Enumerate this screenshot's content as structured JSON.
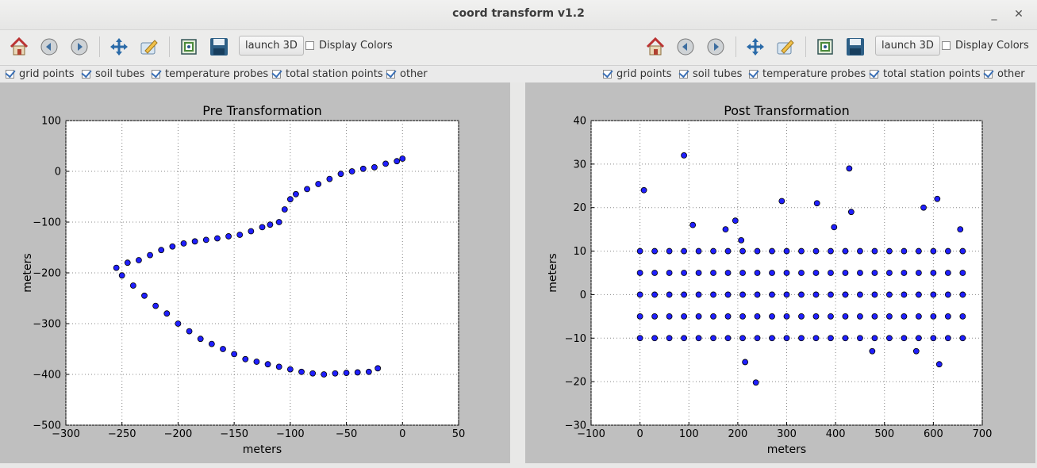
{
  "window": {
    "title": "coord transform v1.2",
    "minimize": "_",
    "close": "✕"
  },
  "toolbar_left": {
    "icons": [
      "home-icon",
      "back-icon",
      "forward-icon",
      "pan-icon",
      "configure-icon",
      "zoom-rect-icon",
      "save-icon"
    ],
    "launch3d": "launch 3D",
    "display_colors": {
      "label": "Display Colors",
      "checked": false
    }
  },
  "toolbar_right": {
    "icons": [
      "home-icon",
      "back-icon",
      "forward-icon",
      "pan-icon",
      "configure-icon",
      "zoom-rect-icon",
      "save-icon"
    ],
    "launch3d": "launch 3D",
    "display_colors": {
      "label": "Display Colors",
      "checked": false
    }
  },
  "filters_left": [
    {
      "label": "grid points",
      "checked": true
    },
    {
      "label": "soil tubes",
      "checked": true
    },
    {
      "label": "temperature probes",
      "checked": true
    },
    {
      "label": "total station points",
      "checked": true
    },
    {
      "label": "other",
      "checked": true
    }
  ],
  "filters_right": [
    {
      "label": "grid points",
      "checked": true
    },
    {
      "label": "soil tubes",
      "checked": true
    },
    {
      "label": "temperature probes",
      "checked": true
    },
    {
      "label": "total station points",
      "checked": true
    },
    {
      "label": "other",
      "checked": true
    }
  ],
  "colors": {
    "marker_fill": "#1f1fff",
    "marker_edge": "#000000",
    "panel_bg": "#bfbfbf",
    "icon_blue": "#2a6aa8"
  },
  "chart_data": [
    {
      "type": "scatter",
      "title": "Pre Transformation",
      "xlabel": "meters",
      "ylabel": "meters",
      "xlim": [
        -300,
        50
      ],
      "ylim": [
        -500,
        100
      ],
      "xticks": [
        "−300",
        "−250",
        "−200",
        "−150",
        "−100",
        "−50",
        "0",
        "50"
      ],
      "yticks": [
        "100",
        "0",
        "−100",
        "−200",
        "−300",
        "−400",
        "−500"
      ],
      "grid": true,
      "series": [
        {
          "x": [
            0,
            -5,
            -15,
            -25,
            -35,
            -45,
            -55,
            -65,
            -75,
            -85,
            -95,
            -100,
            -105,
            -110,
            -118,
            -125,
            -135,
            -145,
            -155,
            -165,
            -175,
            -185,
            -195,
            -205,
            -215,
            -225,
            -235,
            -245,
            -255,
            -250,
            -240,
            -230,
            -220,
            -210,
            -200,
            -190,
            -180,
            -170,
            -160,
            -150,
            -140,
            -130,
            -120,
            -110,
            -100,
            -90,
            -80,
            -70,
            -60,
            -50,
            -40,
            -30,
            -22
          ],
          "y": [
            25,
            20,
            15,
            8,
            5,
            0,
            -5,
            -15,
            -25,
            -35,
            -45,
            -55,
            -75,
            -100,
            -105,
            -110,
            -118,
            -125,
            -128,
            -132,
            -135,
            -138,
            -142,
            -148,
            -155,
            -165,
            -175,
            -180,
            -190,
            -205,
            -225,
            -245,
            -265,
            -280,
            -300,
            -315,
            -330,
            -340,
            -350,
            -360,
            -370,
            -375,
            -380,
            -385,
            -390,
            -395,
            -398,
            -400,
            -398,
            -397,
            -396,
            -395,
            -388
          ]
        }
      ]
    },
    {
      "type": "scatter",
      "title": "Post Transformation",
      "xlabel": "meters",
      "ylabel": "meters",
      "xlim": [
        -100,
        700
      ],
      "ylim": [
        -30,
        40
      ],
      "xticks": [
        "−100",
        "0",
        "100",
        "200",
        "300",
        "400",
        "500",
        "600",
        "700"
      ],
      "yticks": [
        "40",
        "30",
        "20",
        "10",
        "0",
        "−10",
        "−20",
        "−30"
      ],
      "grid": true,
      "series": [
        {
          "x": [
            0,
            30,
            60,
            90,
            120,
            150,
            180,
            210,
            240,
            270,
            300,
            330,
            360,
            390,
            420,
            450,
            480,
            510,
            540,
            570,
            600,
            630,
            660
          ],
          "y": [
            10,
            10,
            10,
            10,
            10,
            10,
            10,
            10,
            10,
            10,
            10,
            10,
            10,
            10,
            10,
            10,
            10,
            10,
            10,
            10,
            10,
            10,
            10
          ]
        },
        {
          "x": [
            0,
            30,
            60,
            90,
            120,
            150,
            180,
            210,
            240,
            270,
            300,
            330,
            360,
            390,
            420,
            450,
            480,
            510,
            540,
            570,
            600,
            630,
            660
          ],
          "y": [
            5,
            5,
            5,
            5,
            5,
            5,
            5,
            5,
            5,
            5,
            5,
            5,
            5,
            5,
            5,
            5,
            5,
            5,
            5,
            5,
            5,
            5,
            5
          ]
        },
        {
          "x": [
            0,
            30,
            60,
            90,
            120,
            150,
            180,
            210,
            240,
            270,
            300,
            330,
            360,
            390,
            420,
            450,
            480,
            510,
            540,
            570,
            600,
            630,
            660
          ],
          "y": [
            0,
            0,
            0,
            0,
            0,
            0,
            0,
            0,
            0,
            0,
            0,
            0,
            0,
            0,
            0,
            0,
            0,
            0,
            0,
            0,
            0,
            0,
            0
          ]
        },
        {
          "x": [
            0,
            30,
            60,
            90,
            120,
            150,
            180,
            210,
            240,
            270,
            300,
            330,
            360,
            390,
            420,
            450,
            480,
            510,
            540,
            570,
            600,
            630,
            660
          ],
          "y": [
            -5,
            -5,
            -5,
            -5,
            -5,
            -5,
            -5,
            -5,
            -5,
            -5,
            -5,
            -5,
            -5,
            -5,
            -5,
            -5,
            -5,
            -5,
            -5,
            -5,
            -5,
            -5,
            -5
          ]
        },
        {
          "x": [
            0,
            30,
            60,
            90,
            120,
            150,
            180,
            210,
            240,
            270,
            300,
            330,
            360,
            390,
            420,
            450,
            480,
            510,
            540,
            570,
            600,
            630,
            660
          ],
          "y": [
            -10,
            -10,
            -10,
            -10,
            -10,
            -10,
            -10,
            -10,
            -10,
            -10,
            -10,
            -10,
            -10,
            -10,
            -10,
            -10,
            -10,
            -10,
            -10,
            -10,
            -10,
            -10,
            -10
          ]
        },
        {
          "x": [
            8,
            90,
            108,
            175,
            195,
            207,
            215,
            237,
            290,
            362,
            397,
            428,
            432,
            475,
            565,
            580,
            608,
            612,
            655
          ],
          "y": [
            24,
            32,
            16,
            15,
            17,
            12.5,
            -15.5,
            -20.2,
            21.5,
            21,
            15.5,
            29,
            19,
            -13,
            -13,
            20,
            22,
            -16,
            15
          ]
        }
      ]
    }
  ]
}
